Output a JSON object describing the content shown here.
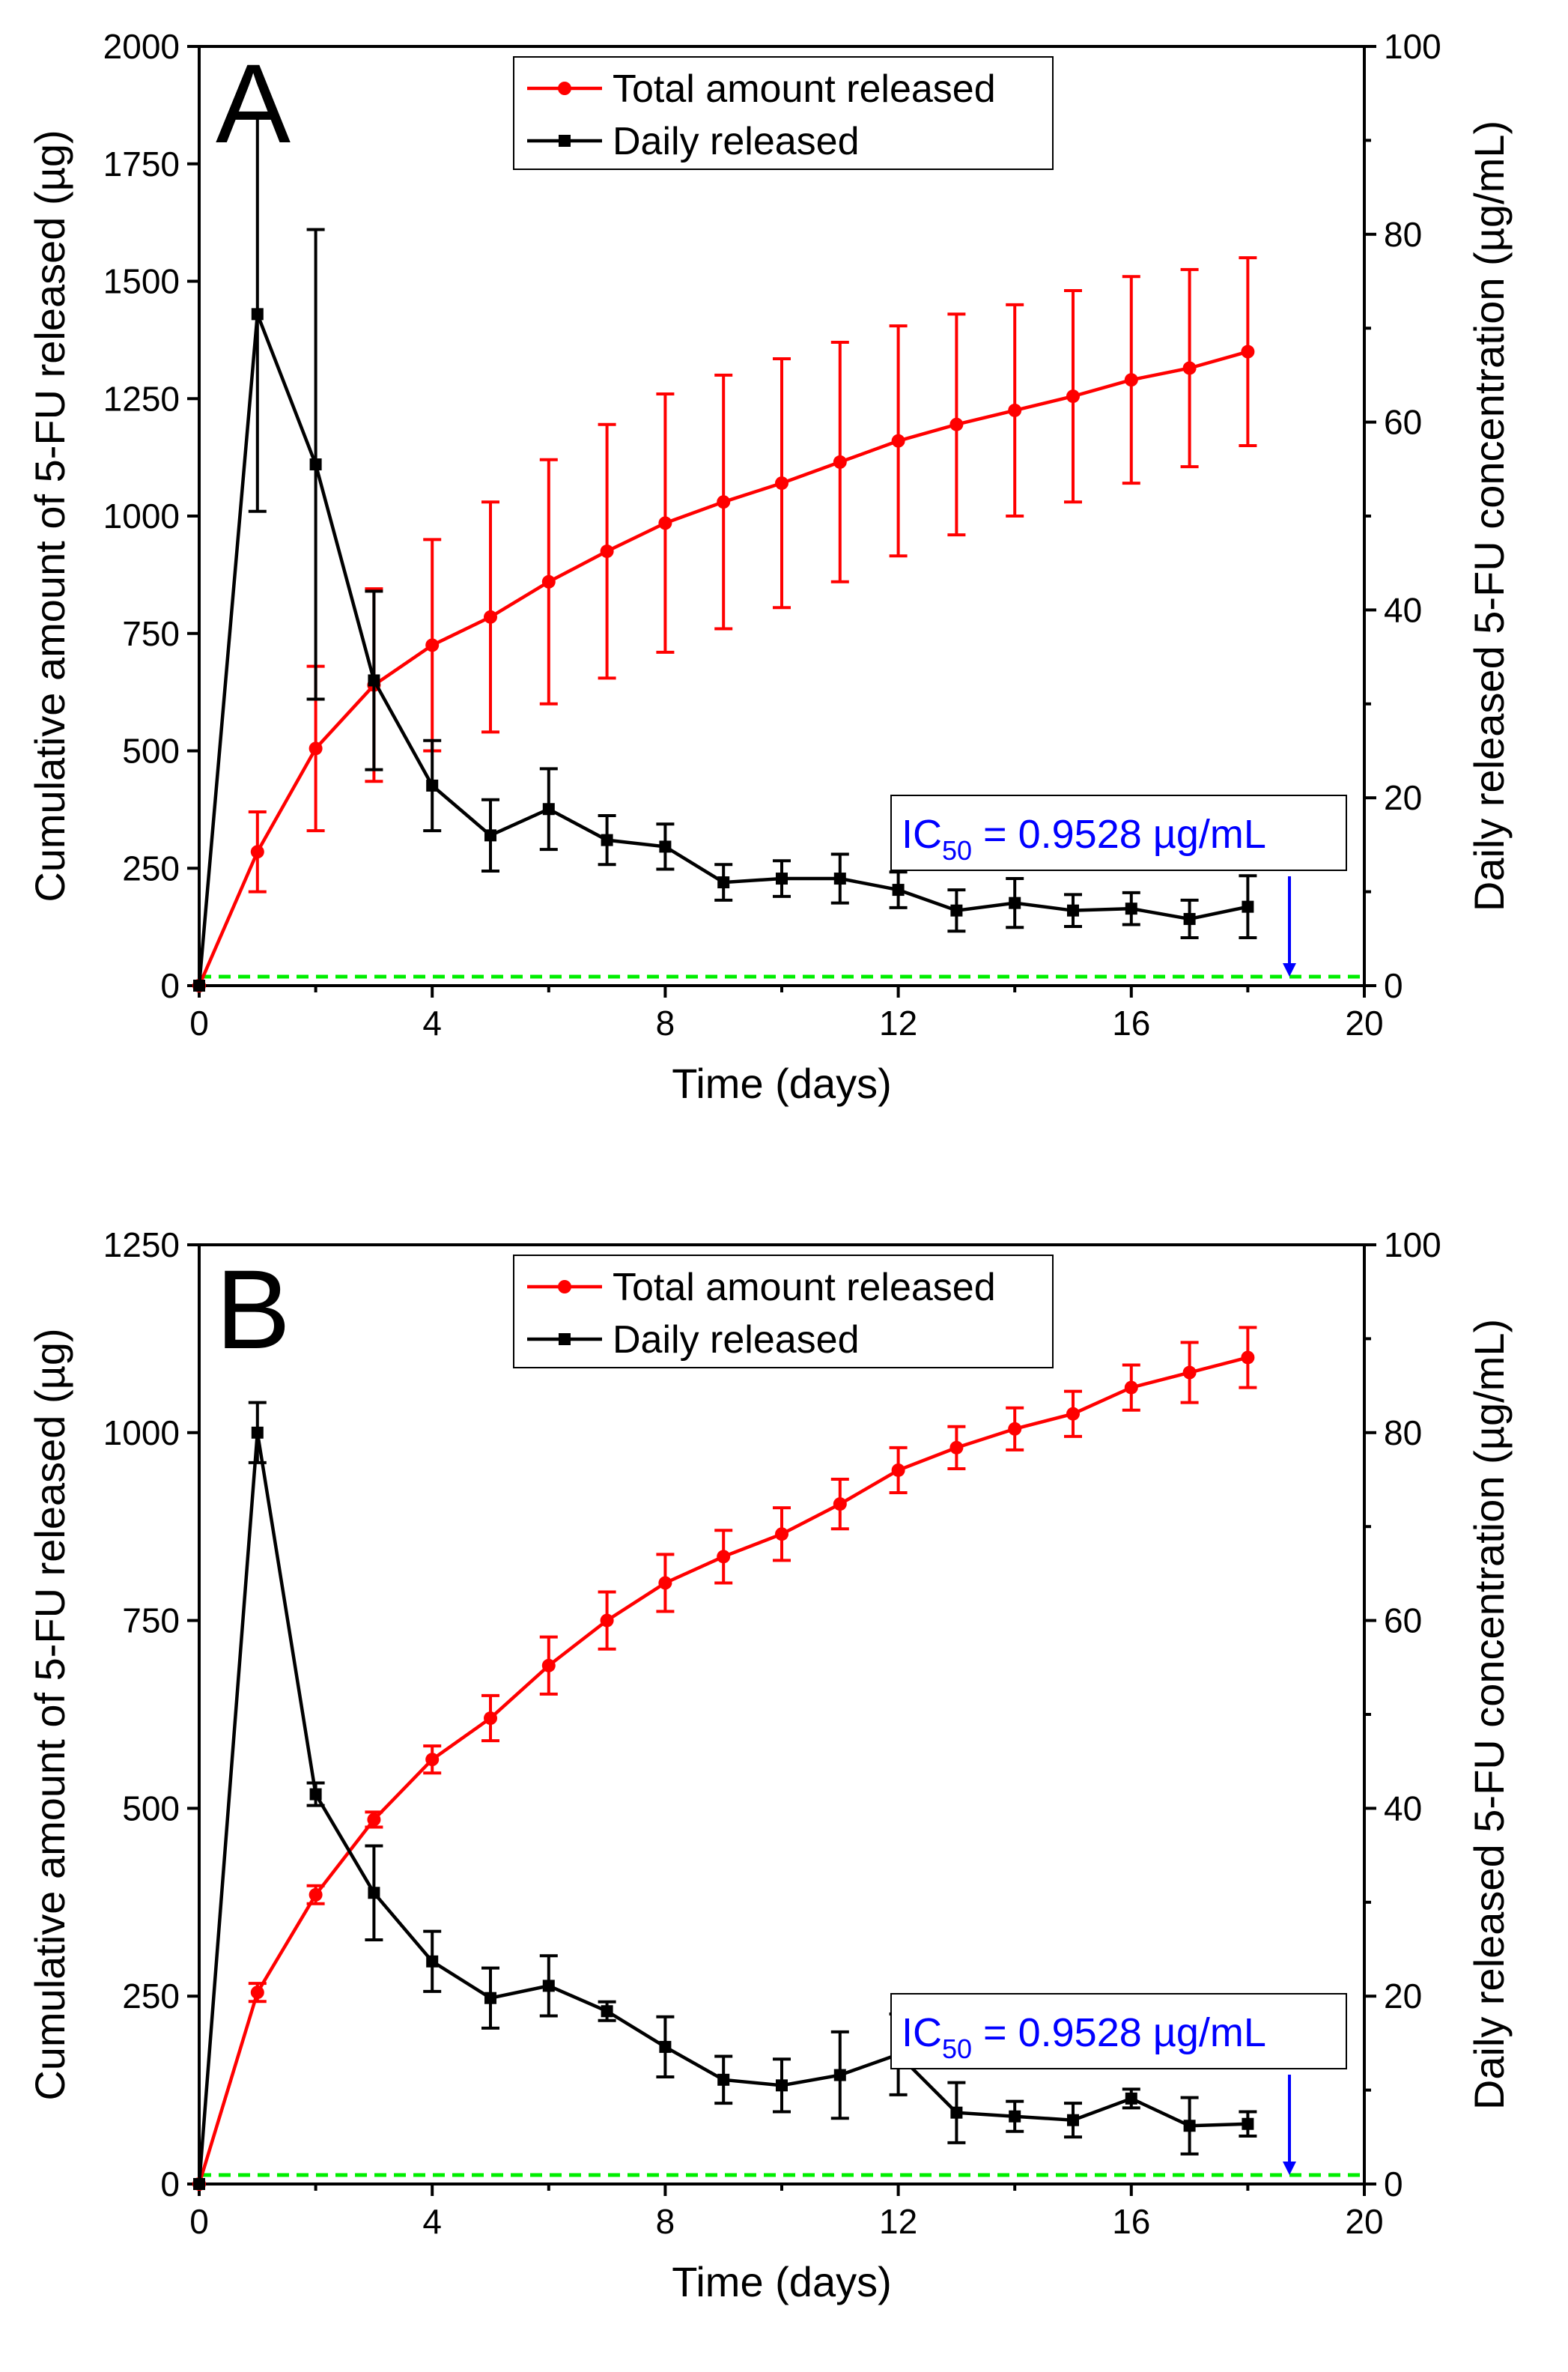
{
  "colors": {
    "total": "#ff0000",
    "daily": "#000000",
    "threshold": "#00ee00",
    "annotation": "#0000ff"
  },
  "chart_data": [
    {
      "panel": "A",
      "type": "line",
      "xlabel": "Time (days)",
      "ylabel_left": "Cumulative amount of 5-FU released (µg)",
      "ylabel_right": "Daily released 5-FU concentration (µg/mL)",
      "xlim": [
        0,
        20
      ],
      "xticks": [
        0,
        4,
        8,
        12,
        16,
        20
      ],
      "ylim_left": [
        0,
        2000
      ],
      "yticks_left": [
        0,
        250,
        500,
        750,
        1000,
        1250,
        1500,
        1750,
        2000
      ],
      "ylim_right": [
        0,
        100
      ],
      "yticks_right": [
        0,
        20,
        40,
        60,
        80,
        100
      ],
      "legend": [
        "Total amount released",
        "Daily released"
      ],
      "annotation": {
        "main": "IC",
        "sub": "50",
        "rest": " = 0.9528 µg/mL",
        "value": 0.9528
      },
      "x": [
        0,
        1,
        2,
        3,
        4,
        5,
        6,
        7,
        8,
        9,
        10,
        11,
        12,
        13,
        14,
        15,
        16,
        17,
        18
      ],
      "series": [
        {
          "name": "Total amount released",
          "axis": "left",
          "values": [
            0,
            285,
            505,
            640,
            725,
            785,
            860,
            925,
            985,
            1030,
            1070,
            1115,
            1160,
            1195,
            1225,
            1255,
            1290,
            1315,
            1350
          ],
          "errors": [
            0,
            85,
            175,
            205,
            225,
            245,
            260,
            270,
            275,
            270,
            265,
            255,
            245,
            235,
            225,
            225,
            220,
            210,
            200
          ]
        },
        {
          "name": "Daily released",
          "axis": "right",
          "values": [
            0,
            71.5,
            55.5,
            32.5,
            21.3,
            16,
            18.8,
            15.5,
            14.8,
            11,
            11.4,
            11.4,
            10.2,
            8,
            8.8,
            8,
            8.2,
            7.1,
            8.4
          ],
          "errors": [
            0,
            21,
            25,
            9.5,
            4.8,
            3.8,
            4.3,
            2.6,
            2.4,
            1.9,
            1.9,
            2.6,
            1.9,
            2.2,
            2.6,
            1.7,
            1.7,
            2,
            3.3
          ]
        }
      ]
    },
    {
      "panel": "B",
      "type": "line",
      "xlabel": "Time (days)",
      "ylabel_left": "Cumulative amount of 5-FU released (µg)",
      "ylabel_right": "Daily released 5-FU concentration (µg/mL)",
      "xlim": [
        0,
        20
      ],
      "xticks": [
        0,
        4,
        8,
        12,
        16,
        20
      ],
      "ylim_left": [
        0,
        1250
      ],
      "yticks_left": [
        0,
        250,
        500,
        750,
        1000,
        1250
      ],
      "ylim_right": [
        0,
        100
      ],
      "yticks_right": [
        0,
        20,
        40,
        60,
        80,
        100
      ],
      "legend": [
        "Total amount released",
        "Daily released"
      ],
      "annotation": {
        "main": "IC",
        "sub": "50",
        "rest": " = 0.9528 µg/mL",
        "value": 0.9528
      },
      "x": [
        0,
        1,
        2,
        3,
        4,
        5,
        6,
        7,
        8,
        9,
        10,
        11,
        12,
        13,
        14,
        15,
        16,
        17,
        18
      ],
      "series": [
        {
          "name": "Total amount released",
          "axis": "left",
          "values": [
            0,
            255,
            385,
            485,
            565,
            620,
            690,
            750,
            800,
            835,
            865,
            905,
            950,
            980,
            1005,
            1025,
            1060,
            1080,
            1100
          ],
          "errors": [
            0,
            12,
            12,
            10,
            18,
            30,
            38,
            38,
            38,
            35,
            35,
            33,
            30,
            28,
            28,
            30,
            30,
            40,
            40
          ]
        },
        {
          "name": "Daily released",
          "axis": "right",
          "values": [
            0,
            80,
            41.5,
            31,
            23.7,
            19.8,
            21.1,
            18.4,
            14.6,
            11.1,
            10.5,
            11.6,
            13.8,
            7.6,
            7.2,
            6.8,
            9.1,
            6.2,
            6.4
          ],
          "errors": [
            0,
            3.2,
            1.2,
            5,
            3.2,
            3.2,
            3.2,
            1,
            3.2,
            2.5,
            2.8,
            4.6,
            4.3,
            3.2,
            1.6,
            1.8,
            1,
            3,
            1.3
          ]
        }
      ]
    }
  ]
}
